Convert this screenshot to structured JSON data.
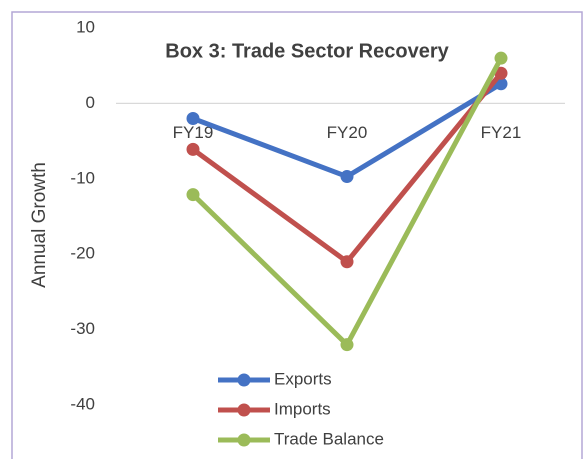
{
  "chart_data": {
    "type": "line",
    "title": "Box 3: Trade Sector Recovery",
    "y_label": "Annual Growth",
    "categories": [
      "FY19",
      "FY20",
      "FY21"
    ],
    "series": [
      {
        "name": "Exports",
        "color": "#4472c4",
        "values": [
          -2,
          -9.7,
          2.6
        ]
      },
      {
        "name": "Imports",
        "color": "#c0504d",
        "values": [
          -6.1,
          -21,
          4
        ]
      },
      {
        "name": "Trade Balance",
        "color": "#9bbb59",
        "values": [
          -12.1,
          -32,
          6
        ]
      }
    ],
    "ylim": [
      -40,
      10
    ],
    "yticks": [
      -40,
      -30,
      -20,
      -10,
      0,
      10
    ],
    "grid": false,
    "legend": "bottom"
  }
}
